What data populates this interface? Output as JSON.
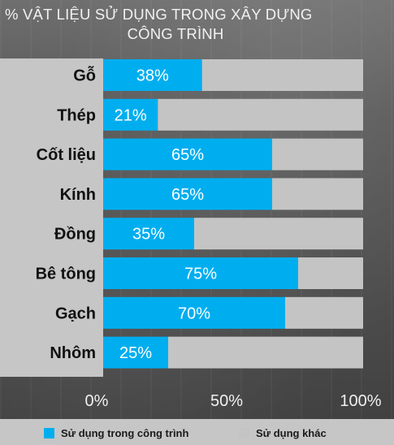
{
  "title_line1": "% VẬT LIỆU SỬ DỤNG TRONG XÂY DỰNG",
  "title_line2": "CÔNG TRÌNH",
  "colors": {
    "used": "#00aeef",
    "other": "#c4c4c4"
  },
  "legend": {
    "used_label": "Sử dụng trong công trình",
    "other_label": "Sử dụng khác"
  },
  "chart_data": {
    "type": "bar",
    "orientation": "horizontal",
    "stacked": true,
    "title": "% VẬT LIỆU SỬ DỤNG TRONG XÂY DỰNG CÔNG TRÌNH",
    "categories": [
      "Gỗ",
      "Thép",
      "Cốt liệu",
      "Kính",
      "Đồng",
      "Bê tông",
      "Gạch",
      "Nhôm"
    ],
    "series": [
      {
        "name": "Sử dụng trong công trình",
        "values": [
          38,
          21,
          65,
          65,
          35,
          75,
          70,
          25
        ]
      },
      {
        "name": "Sử dụng khác",
        "values": [
          62,
          79,
          35,
          35,
          65,
          25,
          30,
          75
        ]
      }
    ],
    "data_labels": [
      "38%",
      "21%",
      "65%",
      "65%",
      "35%",
      "75%",
      "70%",
      "25%"
    ],
    "xlim": [
      0,
      100
    ],
    "xticks": [
      "0%",
      "50%",
      "100%"
    ],
    "grid": false,
    "legend_position": "bottom"
  }
}
